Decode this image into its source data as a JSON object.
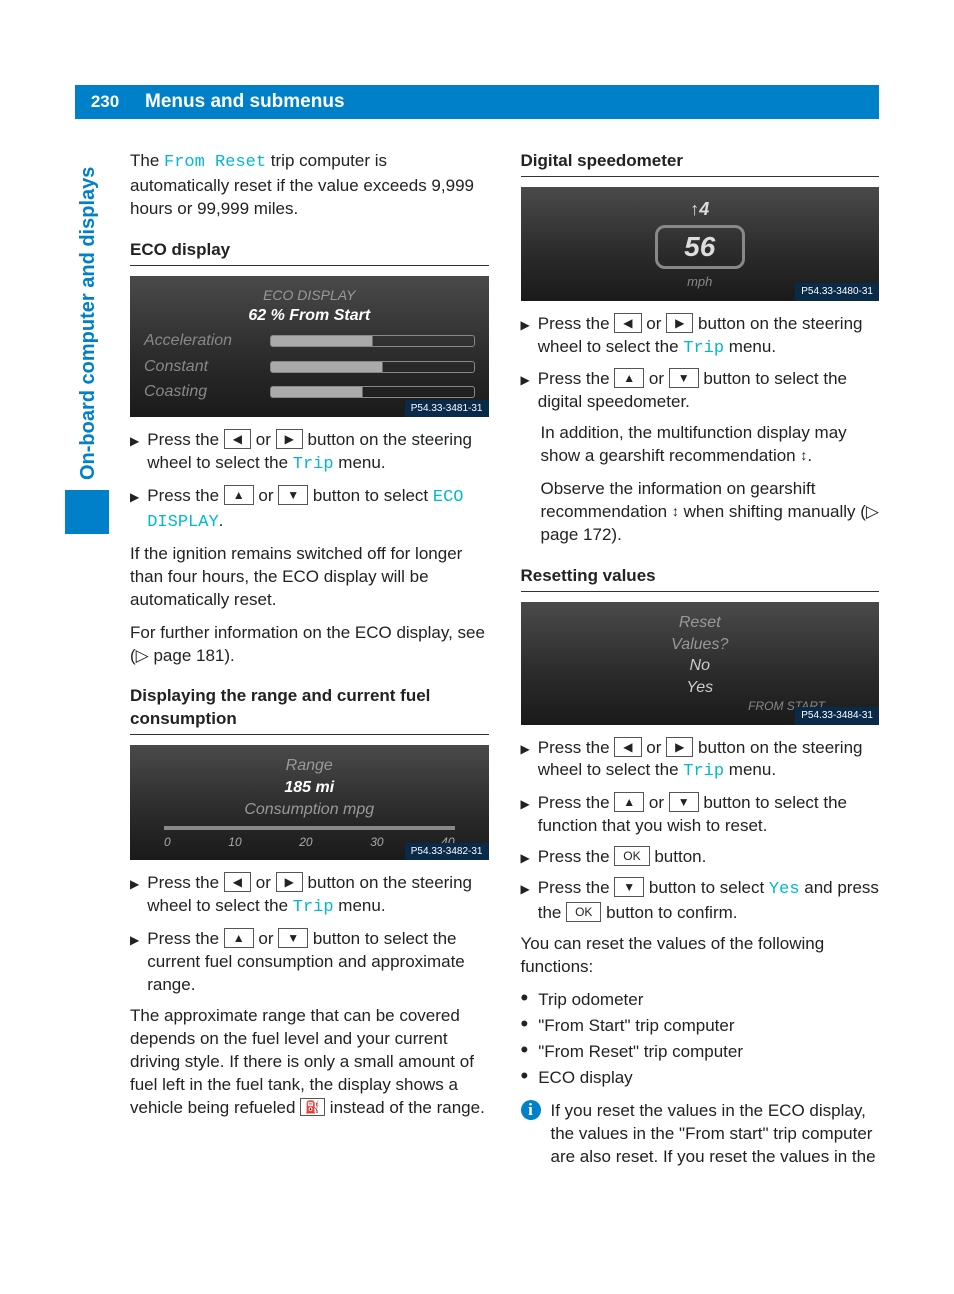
{
  "page": {
    "number": "230",
    "title": "Menus and submenus"
  },
  "sidebar": {
    "label": "On-board computer and displays"
  },
  "buttons": {
    "left": "◀",
    "right": "▶",
    "up": "▲",
    "down": "▼",
    "ok": "OK"
  },
  "intro": {
    "pre": "The ",
    "code": "From Reset",
    "post": " trip computer is automatically reset if the value exceeds 9,999 hours or 99,999 miles."
  },
  "eco": {
    "heading": "ECO display",
    "screen": {
      "title": "ECO DISPLAY",
      "sub": "62 % From Start",
      "rows": [
        {
          "label": "Acceleration",
          "pct": 50
        },
        {
          "label": "Constant",
          "pct": 55
        },
        {
          "label": "Coasting",
          "pct": 45
        }
      ],
      "tag": "P54.33-3481-31"
    },
    "step1_a": "Press the ",
    "step1_b": " or ",
    "step1_c": " button on the steering wheel to select the ",
    "step1_code": "Trip",
    "step1_d": " menu.",
    "step2_a": "Press the ",
    "step2_b": " or ",
    "step2_c": " button to select ",
    "step2_code": "ECO DISPLAY",
    "step2_d": ".",
    "para1": "If the ignition remains switched off for longer than four hours, the ECO display will be automatically reset.",
    "para2": "For further information on the ECO display, see (▷ page 181)."
  },
  "range": {
    "heading": "Displaying the range and current fuel consumption",
    "screen": {
      "l1": "Range",
      "l2": "185 mi",
      "l3": "Consumption mpg",
      "ticks": [
        "0",
        "10",
        "20",
        "30",
        "40"
      ],
      "tag": "P54.33-3482-31"
    },
    "step1_a": "Press the ",
    "step1_b": " or ",
    "step1_c": " button on the steering wheel to select the ",
    "step1_code": "Trip",
    "step1_d": " menu.",
    "step2_a": "Press the ",
    "step2_b": " or ",
    "step2_c": " button to select the current fuel consumption and approximate range.",
    "para_a": "The approximate range that can be covered depends on the fuel level and your current driving style. If there is only a small amount of fuel left in the fuel tank, the display shows a vehicle being refueled ",
    "para_b": " instead of the range."
  },
  "speedo": {
    "heading": "Digital speedometer",
    "screen": {
      "gear": "↑4",
      "value": "56",
      "unit": "mph",
      "tag": "P54.33-3480-31"
    },
    "step1_a": "Press the ",
    "step1_b": " or ",
    "step1_c": " button on the steering wheel to select the ",
    "step1_code": "Trip",
    "step1_d": " menu.",
    "step2_a": "Press the ",
    "step2_b": " or ",
    "step2_c": " button to select the digital speedometer.",
    "note1_a": "In addition, the multifunction display may show a gearshift recommendation ",
    "note1_b": ".",
    "note2_a": "Observe the information on gearshift recommendation ",
    "note2_b": " when shifting manually (▷ page 172)."
  },
  "reset": {
    "heading": "Resetting values",
    "screen": {
      "l1": "Reset",
      "l2": "Values?",
      "o1": "No",
      "o2": "Yes",
      "from": "FROM START",
      "tag": "P54.33-3484-31"
    },
    "step1_a": "Press the ",
    "step1_b": " or ",
    "step1_c": " button on the steering wheel to select the ",
    "step1_code": "Trip",
    "step1_d": " menu.",
    "step2_a": "Press the ",
    "step2_b": " or ",
    "step2_c": " button to select the function that you wish to reset.",
    "step3_a": "Press the ",
    "step3_b": " button.",
    "step4_a": "Press the ",
    "step4_b": " button to select ",
    "step4_code": "Yes",
    "step4_c": " and press the ",
    "step4_d": " button to confirm.",
    "para": "You can reset the values of the following functions:",
    "bullets": [
      "Trip odometer",
      "\"From Start\" trip computer",
      "\"From Reset\" trip computer",
      "ECO display"
    ],
    "info": "If you reset the values in the ECO display, the values in the \"From start\" trip computer are also reset. If you reset the values in the"
  }
}
